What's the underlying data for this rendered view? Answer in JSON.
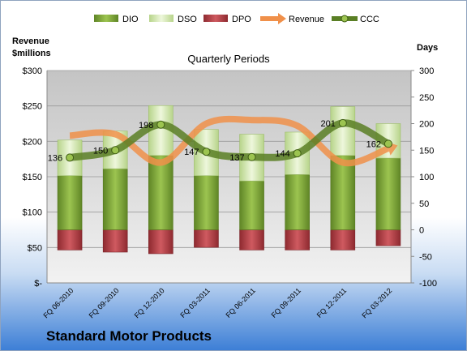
{
  "company": "Standard Motor Products",
  "chart_data": {
    "type": "bar",
    "title": "Quarterly Periods",
    "left_axis_label": [
      "Revenue",
      "$millions"
    ],
    "right_axis_label": "Days",
    "left_ticks": [
      "$-",
      "$50",
      "$100",
      "$150",
      "$200",
      "$250",
      "$300"
    ],
    "right_ticks": [
      "-100",
      "-50",
      "0",
      "50",
      "100",
      "150",
      "200",
      "250",
      "300"
    ],
    "ylim_left": [
      0,
      300
    ],
    "ylim_right": [
      -100,
      300
    ],
    "categories": [
      "FQ 06-2010",
      "FQ 09-2010",
      "FQ 12-2010",
      "FQ 03-2011",
      "FQ 06-2011",
      "FQ 09-2011",
      "FQ 12-2011",
      "FQ 03-2012"
    ],
    "legend": [
      "DIO",
      "DSO",
      "DPO",
      "Revenue",
      "CCC"
    ],
    "legend_position": "top",
    "grid": true,
    "series": [
      {
        "name": "DIO",
        "axis": "right",
        "color": "#7fa639",
        "values": [
          102,
          115,
          140,
          102,
          92,
          104,
          140,
          135
        ]
      },
      {
        "name": "DSO",
        "axis": "right",
        "color": "#d9ecb2",
        "values": [
          67,
          71,
          94,
          87,
          88,
          80,
          92,
          65
        ]
      },
      {
        "name": "DPO",
        "axis": "right",
        "color": "#b9444b",
        "values": [
          -38,
          -42,
          -45,
          -33,
          -38,
          -38,
          -38,
          -30
        ]
      },
      {
        "name": "Revenue",
        "axis": "left",
        "color": "#f0904a",
        "values": [
          208,
          210,
          170,
          225,
          230,
          222,
          170,
          190
        ]
      },
      {
        "name": "CCC",
        "axis": "right",
        "color": "#5a7f25",
        "values": [
          136,
          150,
          198,
          147,
          137,
          144,
          201,
          162
        ],
        "labels": [
          "136",
          "150",
          "198",
          "147",
          "137",
          "144",
          "201",
          "162"
        ]
      }
    ]
  }
}
